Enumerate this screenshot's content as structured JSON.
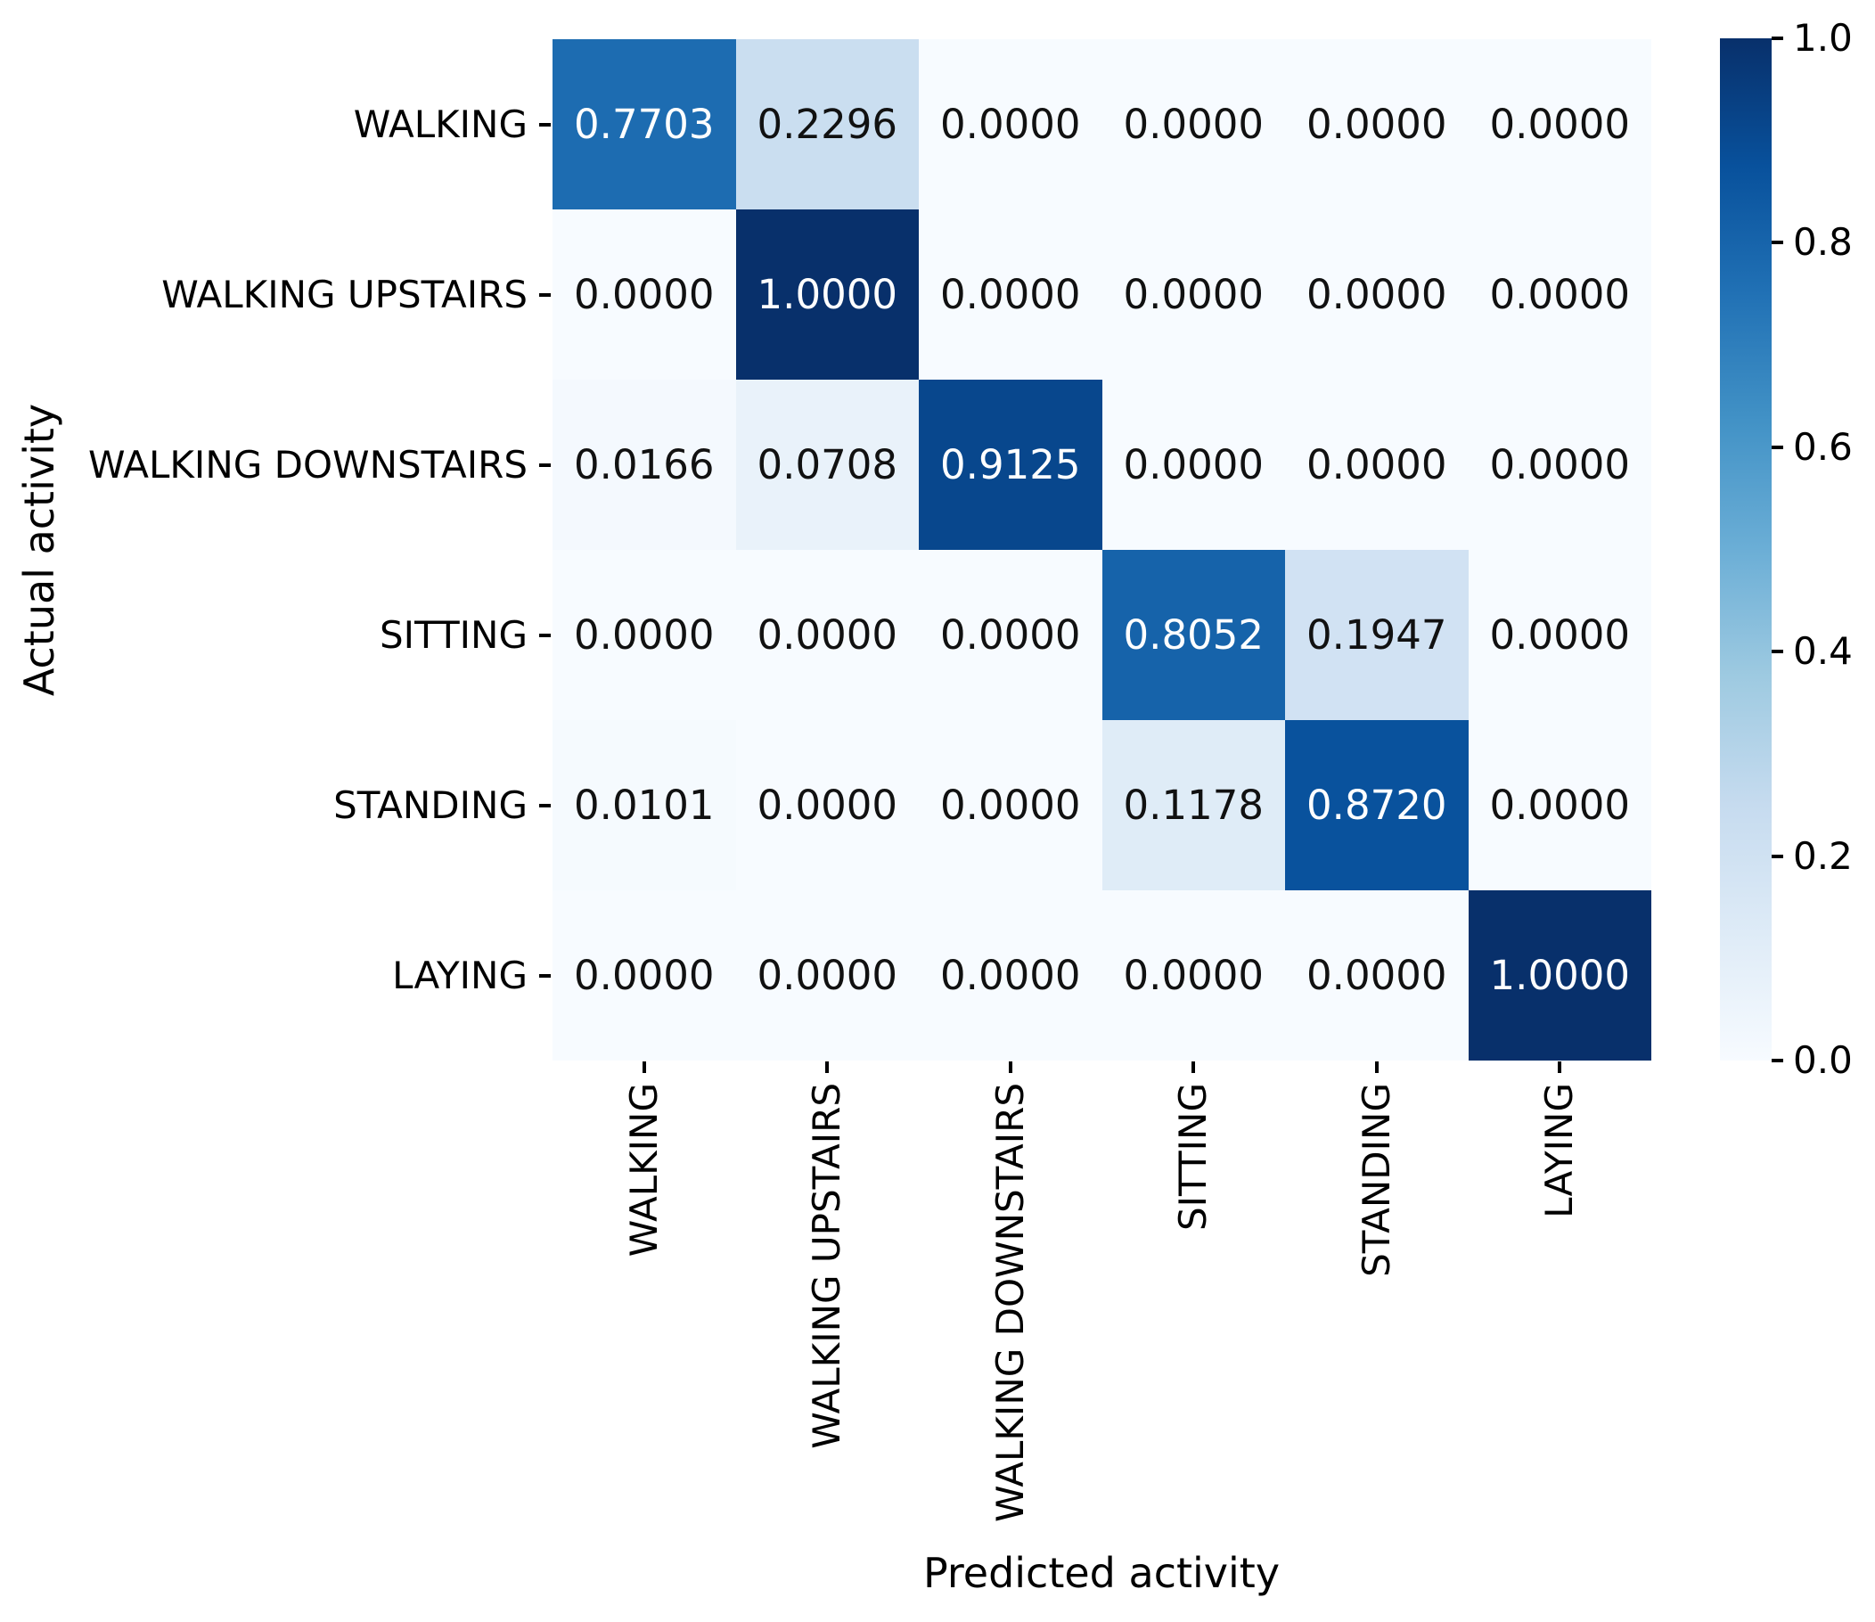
{
  "figure": {
    "background": "#ffffff",
    "text_color": "#000000"
  },
  "chart_data": {
    "type": "heatmap",
    "title": "",
    "xlabel": "Predicted activity",
    "ylabel": "Actual activity",
    "x_categories": [
      "WALKING",
      "WALKING UPSTAIRS",
      "WALKING DOWNSTAIRS",
      "SITTING",
      "STANDING",
      "LAYING"
    ],
    "y_categories": [
      "WALKING",
      "WALKING UPSTAIRS",
      "WALKING DOWNSTAIRS",
      "SITTING",
      "STANDING",
      "LAYING"
    ],
    "values": [
      [
        0.7703,
        0.2296,
        0.0,
        0.0,
        0.0,
        0.0
      ],
      [
        0.0,
        1.0,
        0.0,
        0.0,
        0.0,
        0.0
      ],
      [
        0.0166,
        0.0708,
        0.9125,
        0.0,
        0.0,
        0.0
      ],
      [
        0.0,
        0.0,
        0.0,
        0.8052,
        0.1947,
        0.0
      ],
      [
        0.0101,
        0.0,
        0.0,
        0.1178,
        0.872,
        0.0
      ],
      [
        0.0,
        0.0,
        0.0,
        0.0,
        0.0,
        1.0
      ]
    ],
    "value_decimals": 4,
    "grid": false,
    "colormap": "Blues",
    "colormap_stops": [
      {
        "value": 0.0,
        "color": "#f7fbff"
      },
      {
        "value": 0.125,
        "color": "#deebf7"
      },
      {
        "value": 0.25,
        "color": "#c6dbef"
      },
      {
        "value": 0.375,
        "color": "#9ecae1"
      },
      {
        "value": 0.5,
        "color": "#6baed6"
      },
      {
        "value": 0.625,
        "color": "#4292c6"
      },
      {
        "value": 0.75,
        "color": "#2171b5"
      },
      {
        "value": 0.875,
        "color": "#08519c"
      },
      {
        "value": 1.0,
        "color": "#08306b"
      }
    ],
    "annotation_text_colors": {
      "light": "#ffffff",
      "dark": "#111111"
    },
    "colorbar": {
      "position": "right",
      "min": 0.0,
      "max": 1.0,
      "tick_labels": [
        "1.0",
        "0.8",
        "0.6",
        "0.4",
        "0.2",
        "0.0"
      ]
    }
  }
}
